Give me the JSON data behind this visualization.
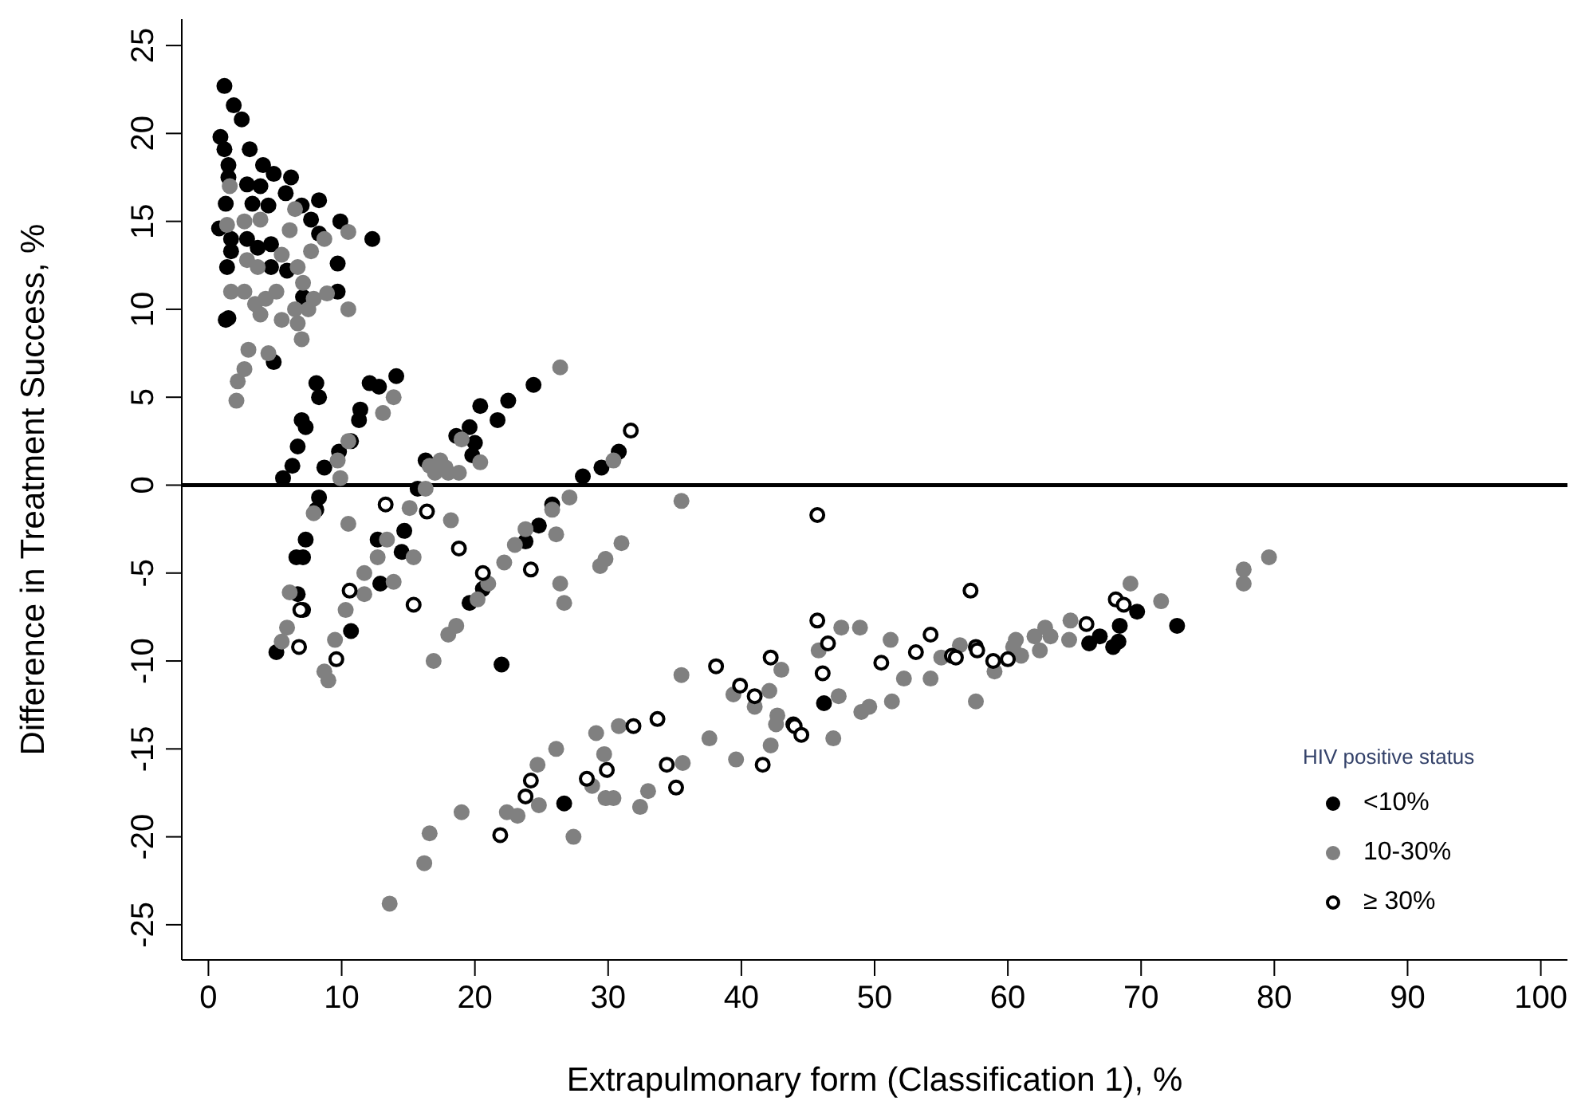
{
  "chart_data": {
    "type": "scatter",
    "xlabel": "Extrapulmonary form (Classification 1), %",
    "ylabel": "Difference in Treatment Success, %",
    "legend_title": "HIV positive status",
    "legend": "bottom right",
    "grid": false,
    "xlim": [
      -2,
      102
    ],
    "xticks": [
      0,
      10,
      20,
      30,
      40,
      50,
      60,
      70,
      80,
      90,
      100
    ],
    "ylim": [
      -27,
      26.5
    ],
    "yticks": [
      -25,
      -20,
      -15,
      -10,
      -5,
      0,
      5,
      10,
      15,
      20,
      25
    ],
    "ref_lines": [
      {
        "axis": "y",
        "value": 0,
        "color": "#000000"
      }
    ],
    "series": [
      {
        "name": "<10%",
        "color": "#000000",
        "marker": "circle",
        "x": [
          1.2,
          1.9,
          2.5,
          0.9,
          1.2,
          3.1,
          1.5,
          4.1,
          4.9,
          6.2,
          1.5,
          2.9,
          3.9,
          5.8,
          1.3,
          3.3,
          4.5,
          7.0,
          8.3,
          7.7,
          9.9,
          0.8,
          12.3,
          1.7,
          2.9,
          4.7,
          8.3,
          1.7,
          3.7,
          1.4,
          4.7,
          5.9,
          9.7,
          9.7,
          7.1,
          1.3,
          1.5,
          4.9,
          8.1,
          8.3,
          12.1,
          12.8,
          14.1,
          7.0,
          7.3,
          11.4,
          11.3,
          6.7,
          6.3,
          5.6,
          10.7,
          9.8,
          8.7,
          24.4,
          22.5,
          20.4,
          21.7,
          19.6,
          18.6,
          20.0,
          16.3,
          8.3,
          8.1,
          7.3,
          7.1,
          6.6,
          6.7,
          5.1,
          7.1,
          12.7,
          12.9,
          14.5,
          14.7,
          15.7,
          19.8,
          10.7,
          19.6,
          20.6,
          23.8,
          24.8,
          25.8,
          28.1,
          29.5,
          30.8,
          22.0,
          26.7,
          46.2,
          69.7,
          68.4,
          66.9,
          66.1,
          67.9,
          68.3,
          72.7
        ],
        "values": [
          22.7,
          21.6,
          20.8,
          19.8,
          19.1,
          19.1,
          18.2,
          18.2,
          17.7,
          17.5,
          17.5,
          17.1,
          17.0,
          16.6,
          16.0,
          16.0,
          15.9,
          15.9,
          16.2,
          15.1,
          15.0,
          14.6,
          14.0,
          14.0,
          14.0,
          13.7,
          14.3,
          13.3,
          13.5,
          12.4,
          12.4,
          12.2,
          12.6,
          11.0,
          10.7,
          9.4,
          9.5,
          7.0,
          5.8,
          5.0,
          5.8,
          5.6,
          6.2,
          3.7,
          3.3,
          4.3,
          3.7,
          2.2,
          1.1,
          0.4,
          2.5,
          1.9,
          1.0,
          5.7,
          4.8,
          4.5,
          3.7,
          3.3,
          2.8,
          2.4,
          1.4,
          -0.7,
          -1.4,
          -3.1,
          -4.1,
          -4.1,
          -6.2,
          -9.5,
          -7.1,
          -3.1,
          -5.6,
          -3.8,
          -2.6,
          -0.2,
          1.7,
          -8.3,
          -6.7,
          -5.9,
          -3.2,
          -2.3,
          -1.1,
          0.5,
          1.0,
          1.9,
          -10.2,
          -18.1,
          -12.4,
          -7.2,
          -8.0,
          -8.6,
          -9.0,
          -9.2,
          -8.9,
          -8.0
        ]
      },
      {
        "name": "10-30%",
        "color": "#808080",
        "marker": "circle",
        "x": [
          26.4,
          1.6,
          6.5,
          3.9,
          2.7,
          1.4,
          6.1,
          10.5,
          8.7,
          7.7,
          5.5,
          2.9,
          3.7,
          6.7,
          7.1,
          1.7,
          2.7,
          5.1,
          8.9,
          7.9,
          3.5,
          4.3,
          10.5,
          3.9,
          6.5,
          5.5,
          7.5,
          6.7,
          7.0,
          3.0,
          4.5,
          2.7,
          2.2,
          2.1,
          13.9,
          13.1,
          10.5,
          9.7,
          9.9,
          19.0,
          20.4,
          16.6,
          17.8,
          18.8,
          10.5,
          7.9,
          6.1,
          5.9,
          5.5,
          8.7,
          9.0,
          9.5,
          10.3,
          11.7,
          11.7,
          12.7,
          13.4,
          13.9,
          15.1,
          15.4,
          16.3,
          17.0,
          17.4,
          18.0,
          18.2,
          16.9,
          18.0,
          18.6,
          20.2,
          21.0,
          22.2,
          23.0,
          23.8,
          25.8,
          27.1,
          26.1,
          26.4,
          26.7,
          29.4,
          29.8,
          31.0,
          30.4,
          35.5,
          35.5,
          43.0,
          42.1,
          39.4,
          41.0,
          37.6,
          42.6,
          42.2,
          39.6,
          35.6,
          33.0,
          32.4,
          29.8,
          30.4,
          28.8,
          29.7,
          29.1,
          30.8,
          26.1,
          24.7,
          24.8,
          27.4,
          22.4,
          23.2,
          19.0,
          16.6,
          16.2,
          13.6,
          79.6,
          77.7,
          77.7,
          71.5,
          69.2,
          64.7,
          64.6,
          63.2,
          62.8,
          62.0,
          62.4,
          60.6,
          60.4,
          61.0,
          59.0,
          56.4,
          55.0,
          54.2,
          57.6,
          52.2,
          51.2,
          48.9,
          47.5,
          45.8,
          51.3,
          49.6,
          49.0,
          47.3,
          46.9,
          42.7
        ],
        "values": [
          6.7,
          17.0,
          15.7,
          15.1,
          15.0,
          14.8,
          14.5,
          14.4,
          14.0,
          13.3,
          13.1,
          12.8,
          12.4,
          12.4,
          11.5,
          11.0,
          11.0,
          11.0,
          10.9,
          10.6,
          10.3,
          10.6,
          10.0,
          9.7,
          10.0,
          9.4,
          10.0,
          9.2,
          8.3,
          7.7,
          7.5,
          6.6,
          5.9,
          4.8,
          5.0,
          4.1,
          2.5,
          1.4,
          0.4,
          2.6,
          1.3,
          1.1,
          1.0,
          0.7,
          -2.2,
          -1.6,
          -6.1,
          -8.1,
          -8.9,
          -10.6,
          -11.1,
          -8.8,
          -7.1,
          -6.2,
          -5.0,
          -4.1,
          -3.1,
          -5.5,
          -1.3,
          -4.1,
          -0.2,
          0.7,
          1.4,
          0.7,
          -2.0,
          -10.0,
          -8.5,
          -8.0,
          -6.5,
          -5.6,
          -4.4,
          -3.4,
          -2.5,
          -1.4,
          -0.7,
          -2.8,
          -5.6,
          -6.7,
          -4.6,
          -4.2,
          -3.3,
          1.4,
          -0.9,
          -10.8,
          -10.5,
          -11.7,
          -11.9,
          -12.6,
          -14.4,
          -13.6,
          -14.8,
          -15.6,
          -15.8,
          -17.4,
          -18.3,
          -17.8,
          -17.8,
          -17.1,
          -15.3,
          -14.1,
          -13.7,
          -15.0,
          -15.9,
          -18.2,
          -20.0,
          -18.6,
          -18.8,
          -18.6,
          -19.8,
          -21.5,
          -23.8,
          -4.1,
          -4.8,
          -5.6,
          -6.6,
          -5.6,
          -7.7,
          -8.8,
          -8.6,
          -8.1,
          -8.6,
          -9.4,
          -8.8,
          -9.2,
          -9.7,
          -10.6,
          -9.1,
          -9.8,
          -11.0,
          -12.3,
          -11.0,
          -8.8,
          -8.1,
          -8.1,
          -9.4,
          -12.3,
          -12.6,
          -12.9,
          -12.0,
          -14.4,
          -13.1
        ]
      },
      {
        "name": "≥ 30%",
        "color": "#000000",
        "marker": "circle-open",
        "x": [
          13.3,
          16.4,
          18.8,
          20.6,
          24.2,
          10.6,
          15.4,
          6.9,
          6.8,
          9.6,
          31.7,
          38.1,
          42.2,
          39.9,
          41.0,
          33.7,
          31.9,
          34.4,
          35.1,
          29.9,
          28.4,
          24.2,
          23.8,
          21.9,
          41.6,
          43.9,
          45.7,
          57.2,
          45.7,
          46.5,
          46.1,
          44.0,
          44.5,
          50.5,
          53.1,
          54.2,
          55.8,
          56.1,
          57.6,
          57.7,
          58.9,
          60.0,
          65.9,
          68.1,
          68.7
        ],
        "values": [
          -1.1,
          -1.5,
          -3.6,
          -5.0,
          -4.8,
          -6.0,
          -6.8,
          -7.1,
          -9.2,
          -9.9,
          3.1,
          -10.3,
          -9.8,
          -11.4,
          -12.0,
          -13.3,
          -13.7,
          -15.9,
          -17.2,
          -16.2,
          -16.7,
          -16.8,
          -17.7,
          -19.9,
          -15.9,
          -13.6,
          -1.7,
          -6.0,
          -7.7,
          -9.0,
          -10.7,
          -13.7,
          -14.2,
          -10.1,
          -9.5,
          -8.5,
          -9.7,
          -9.8,
          -9.2,
          -9.4,
          -10.0,
          -9.9,
          -7.9,
          -6.5,
          -6.8
        ]
      }
    ]
  }
}
